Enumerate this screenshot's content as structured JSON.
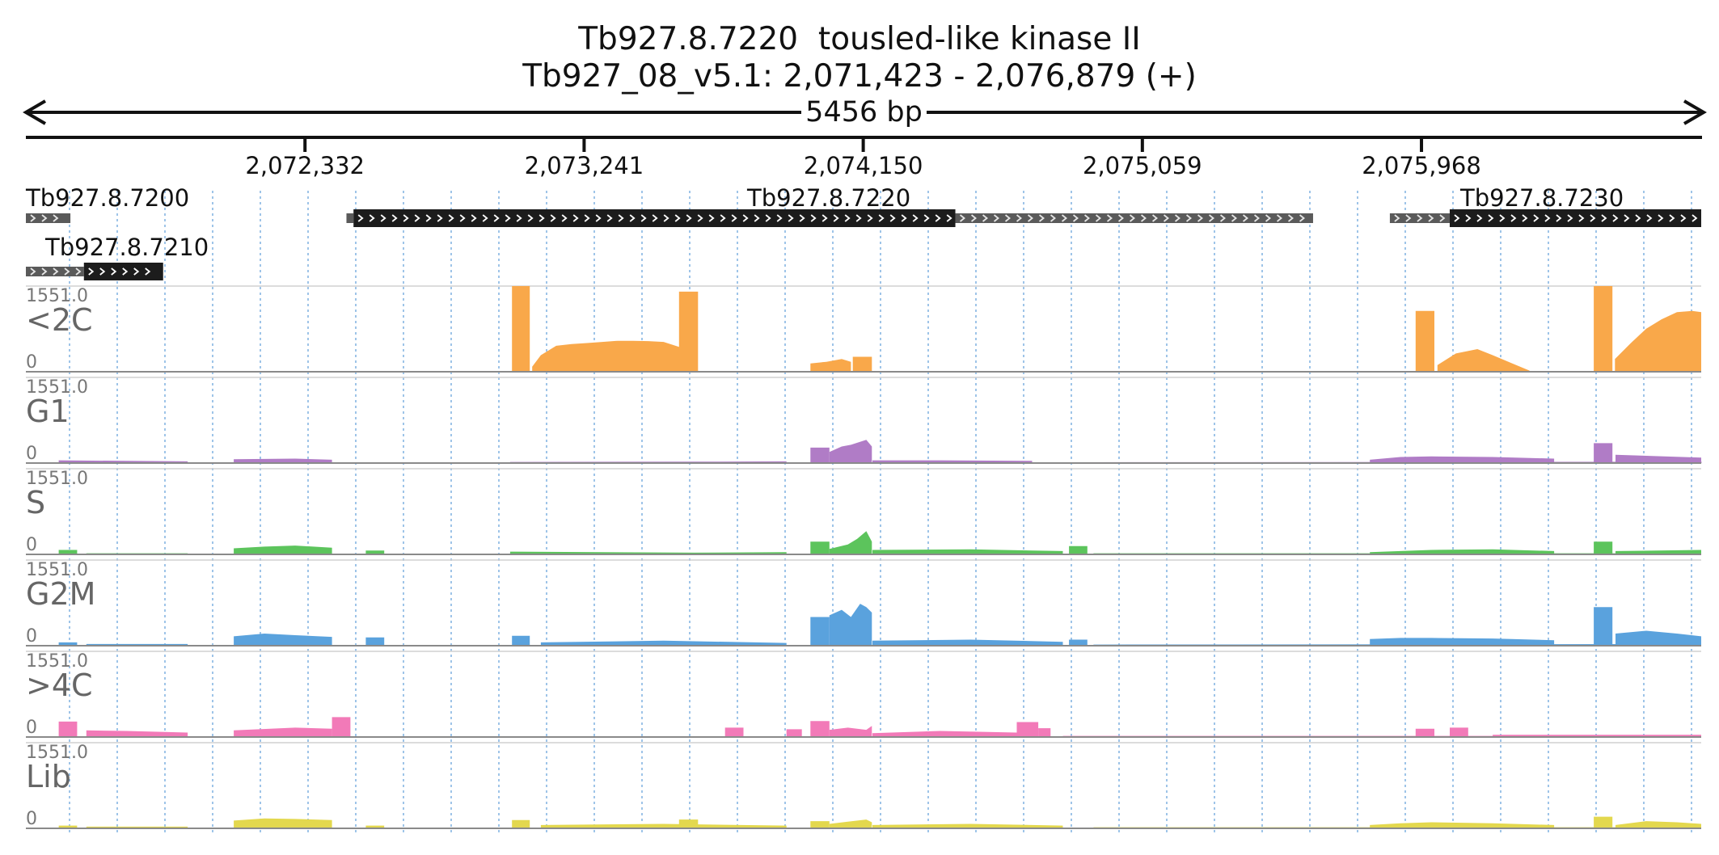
{
  "header": {
    "line1": "Tb927.8.7220  tousled-like kinase II",
    "line2": "Tb927_08_v5.1: 2,071,423 - 2,076,879 (+)",
    "span": "5456 bp"
  },
  "ruler": {
    "ticks": [
      "2,072,332",
      "2,073,241",
      "2,074,150",
      "2,075,059",
      "2,075,968"
    ]
  },
  "genes": [
    {
      "id": "Tb927.8.7200",
      "label": "Tb927.8.7200"
    },
    {
      "id": "Tb927.8.7210",
      "label": "Tb927.8.7210"
    },
    {
      "id": "Tb927.8.7220",
      "label": "Tb927.8.7220"
    },
    {
      "id": "Tb927.8.7230",
      "label": "Tb927.8.7230"
    }
  ],
  "colors": {
    "lt2c": "#f9a84a",
    "g1": "#b07cc6",
    "s": "#5cc45c",
    "g2m": "#5aa2dd",
    "gt4c": "#f27ab8",
    "lib": "#e3d84e",
    "cds": "#1c1c1c",
    "utr": "#5a5a5a",
    "grid": "#7fb0e0"
  },
  "chart_data": {
    "type": "area",
    "title": "Tb927.8.7220  tousled-like kinase II",
    "subtitle": "Tb927_08_v5.1: 2,071,423 - 2,076,879 (+)",
    "xlabel": "",
    "ylabel": "",
    "xlim": [
      2071423,
      2076879
    ],
    "ylim": [
      0,
      1551.0
    ],
    "ymax_label": "1551.0",
    "ymin_label": "0",
    "x_ticks": [
      2072332,
      2073241,
      2074150,
      2075059,
      2075968
    ],
    "gene_models": [
      {
        "name": "Tb927.8.7200",
        "strand": "+",
        "utr": [
          [
            2071423,
            2071568
          ]
        ],
        "cds": []
      },
      {
        "name": "Tb927.8.7210",
        "strand": "+",
        "utr": [
          [
            2071423,
            2071612
          ]
        ],
        "cds": [
          [
            2071612,
            2071870
          ]
        ]
      },
      {
        "name": "Tb927.8.7220",
        "strand": "+",
        "utr": [
          [
            2072467,
            2072490
          ],
          [
            2074450,
            2075615
          ]
        ],
        "cds": [
          [
            2072490,
            2074450
          ]
        ]
      },
      {
        "name": "Tb927.8.7230",
        "strand": "+",
        "utr": [
          [
            2075865,
            2076060
          ]
        ],
        "cds": [
          [
            2076060,
            2076879
          ]
        ]
      }
    ],
    "series": [
      {
        "name": "<2C",
        "color": "#f9a84a",
        "segments": [
          {
            "x": [
              2073006,
              2073064
            ],
            "y": [
              1551,
              1551
            ]
          },
          {
            "x": [
              2073072,
              2073100,
              2073150,
              2073200,
              2073250,
              2073300,
              2073350,
              2073400,
              2073450,
              2073500,
              2073550,
              2073580
            ],
            "y": [
              90,
              300,
              470,
              500,
              520,
              540,
              560,
              560,
              555,
              540,
              450,
              90
            ]
          },
          {
            "x": [
              2073550,
              2073612
            ],
            "y": [
              1450,
              1450
            ]
          },
          {
            "x": [
              2073978,
              2074030,
              2074080,
              2074110
            ],
            "y": [
              150,
              180,
              230,
              180
            ]
          },
          {
            "x": [
              2074116,
              2074178
            ],
            "y": [
              270,
              270
            ]
          },
          {
            "x": [
              2075949,
              2076010
            ],
            "y": [
              1100,
              1100
            ]
          },
          {
            "x": [
              2076020,
              2076080,
              2076150,
              2076200,
              2076260,
              2076320
            ],
            "y": [
              120,
              330,
              410,
              300,
              160,
              20
            ]
          },
          {
            "x": [
              2076529,
              2076590
            ],
            "y": [
              1551,
              1551
            ]
          },
          {
            "x": [
              2076598,
              2076650,
              2076700,
              2076750,
              2076800,
              2076850,
              2076879
            ],
            "y": [
              230,
              520,
              780,
              950,
              1080,
              1100,
              1080
            ]
          }
        ]
      },
      {
        "name": "G1",
        "color": "#b07cc6",
        "segments": [
          {
            "x": [
              2071530,
              2071750,
              2071950
            ],
            "y": [
              50,
              40,
              30
            ]
          },
          {
            "x": [
              2072100,
              2072300,
              2072420
            ],
            "y": [
              70,
              80,
              60
            ]
          },
          {
            "x": [
              2072650,
              2072800
            ],
            "y": [
              15,
              15
            ]
          },
          {
            "x": [
              2073000,
              2073600,
              2073900
            ],
            "y": [
              20,
              25,
              30
            ]
          },
          {
            "x": [
              2073978,
              2074040
            ],
            "y": [
              280,
              280
            ]
          },
          {
            "x": [
              2074040,
              2074080,
              2074110,
              2074160,
              2074178
            ],
            "y": [
              200,
              300,
              330,
              420,
              300
            ]
          },
          {
            "x": [
              2074180,
              2074400,
              2074700
            ],
            "y": [
              50,
              50,
              40
            ]
          },
          {
            "x": [
              2074820,
              2076880
            ],
            "y": [
              15,
              25
            ]
          },
          {
            "x": [
              2075800,
              2075900,
              2076000,
              2076200,
              2076400
            ],
            "y": [
              60,
              110,
              120,
              110,
              80
            ]
          },
          {
            "x": [
              2076529,
              2076590
            ],
            "y": [
              360,
              360
            ]
          },
          {
            "x": [
              2076600,
              2076879
            ],
            "y": [
              150,
              100
            ]
          }
        ]
      },
      {
        "name": "S",
        "color": "#5cc45c",
        "segments": [
          {
            "x": [
              2071530,
              2071590
            ],
            "y": [
              80,
              80
            ]
          },
          {
            "x": [
              2071620,
              2071950
            ],
            "y": [
              20,
              20
            ]
          },
          {
            "x": [
              2072100,
              2072200,
              2072300,
              2072420
            ],
            "y": [
              110,
              140,
              160,
              120
            ]
          },
          {
            "x": [
              2072530,
              2072590
            ],
            "y": [
              70,
              70
            ]
          },
          {
            "x": [
              2073000,
              2073600,
              2073900
            ],
            "y": [
              50,
              30,
              40
            ]
          },
          {
            "x": [
              2073978,
              2074040
            ],
            "y": [
              230,
              230
            ]
          },
          {
            "x": [
              2074040,
              2074100,
              2074130,
              2074160,
              2074178
            ],
            "y": [
              100,
              180,
              280,
              420,
              230
            ]
          },
          {
            "x": [
              2074180,
              2074500,
              2074800
            ],
            "y": [
              80,
              90,
              60
            ]
          },
          {
            "x": [
              2074820,
              2074880
            ],
            "y": [
              150,
              150
            ]
          },
          {
            "x": [
              2074900,
              2076879
            ],
            "y": [
              20,
              20
            ]
          },
          {
            "x": [
              2075800,
              2075900,
              2076000,
              2076200,
              2076400
            ],
            "y": [
              40,
              60,
              80,
              90,
              60
            ]
          },
          {
            "x": [
              2076529,
              2076590
            ],
            "y": [
              230,
              230
            ]
          },
          {
            "x": [
              2076600,
              2076879
            ],
            "y": [
              60,
              80
            ]
          }
        ]
      },
      {
        "name": "G2M",
        "color": "#5aa2dd",
        "segments": [
          {
            "x": [
              2071530,
              2071590
            ],
            "y": [
              60,
              60
            ]
          },
          {
            "x": [
              2071620,
              2071950
            ],
            "y": [
              30,
              30
            ]
          },
          {
            "x": [
              2072100,
              2072200,
              2072300,
              2072420
            ],
            "y": [
              170,
              220,
              190,
              160
            ]
          },
          {
            "x": [
              2072530,
              2072590
            ],
            "y": [
              150,
              150
            ]
          },
          {
            "x": [
              2073006,
              2073064
            ],
            "y": [
              180,
              180
            ]
          },
          {
            "x": [
              2073100,
              2073500,
              2073900
            ],
            "y": [
              60,
              90,
              50
            ]
          },
          {
            "x": [
              2073978,
              2074040
            ],
            "y": [
              520,
              520
            ]
          },
          {
            "x": [
              2074040,
              2074080,
              2074110,
              2074140,
              2074160,
              2074178
            ],
            "y": [
              550,
              650,
              520,
              760,
              700,
              600
            ]
          },
          {
            "x": [
              2074180,
              2074500,
              2074800
            ],
            "y": [
              90,
              110,
              70
            ]
          },
          {
            "x": [
              2074820,
              2074880
            ],
            "y": [
              110,
              110
            ]
          },
          {
            "x": [
              2074900,
              2076879
            ],
            "y": [
              20,
              30
            ]
          },
          {
            "x": [
              2075800,
              2075900,
              2076000,
              2076200,
              2076400
            ],
            "y": [
              120,
              140,
              140,
              130,
              100
            ]
          },
          {
            "x": [
              2076529,
              2076590
            ],
            "y": [
              700,
              700
            ]
          },
          {
            "x": [
              2076600,
              2076700,
              2076800,
              2076879
            ],
            "y": [
              220,
              270,
              220,
              170
            ]
          }
        ]
      },
      {
        "name": ">4C",
        "color": "#f27ab8",
        "segments": [
          {
            "x": [
              2071530,
              2071590
            ],
            "y": [
              280,
              280
            ]
          },
          {
            "x": [
              2071620,
              2071750,
              2071950
            ],
            "y": [
              120,
              110,
              80
            ]
          },
          {
            "x": [
              2072100,
              2072300,
              2072420
            ],
            "y": [
              120,
              170,
              150
            ]
          },
          {
            "x": [
              2072420,
              2072480
            ],
            "y": [
              360,
              360
            ]
          },
          {
            "x": [
              2073700,
              2073760
            ],
            "y": [
              170,
              170
            ]
          },
          {
            "x": [
              2073900,
              2073950
            ],
            "y": [
              140,
              140
            ]
          },
          {
            "x": [
              2073978,
              2074040
            ],
            "y": [
              290,
              290
            ]
          },
          {
            "x": [
              2074040,
              2074100,
              2074160,
              2074178
            ],
            "y": [
              130,
              170,
              130,
              200
            ]
          },
          {
            "x": [
              2074180,
              2074400,
              2074650
            ],
            "y": [
              70,
              110,
              80
            ]
          },
          {
            "x": [
              2074650,
              2074720
            ],
            "y": [
              270,
              270
            ]
          },
          {
            "x": [
              2074720,
              2074760
            ],
            "y": [
              160,
              160
            ]
          },
          {
            "x": [
              2074800,
              2076879
            ],
            "y": [
              20,
              20
            ]
          },
          {
            "x": [
              2075949,
              2076010
            ],
            "y": [
              150,
              150
            ]
          },
          {
            "x": [
              2076060,
              2076120
            ],
            "y": [
              170,
              170
            ]
          },
          {
            "x": [
              2076200,
              2076879
            ],
            "y": [
              40,
              40
            ]
          }
        ]
      },
      {
        "name": "Lib",
        "color": "#e3d84e",
        "segments": [
          {
            "x": [
              2071530,
              2071590
            ],
            "y": [
              50,
              50
            ]
          },
          {
            "x": [
              2071620,
              2071950
            ],
            "y": [
              30,
              30
            ]
          },
          {
            "x": [
              2072100,
              2072200,
              2072300,
              2072420
            ],
            "y": [
              140,
              180,
              170,
              150
            ]
          },
          {
            "x": [
              2072530,
              2072590
            ],
            "y": [
              50,
              50
            ]
          },
          {
            "x": [
              2073006,
              2073064
            ],
            "y": [
              150,
              150
            ]
          },
          {
            "x": [
              2073100,
              2073500,
              2073900
            ],
            "y": [
              60,
              80,
              50
            ]
          },
          {
            "x": [
              2073550,
              2073612
            ],
            "y": [
              160,
              160
            ]
          },
          {
            "x": [
              2073978,
              2074040
            ],
            "y": [
              130,
              130
            ]
          },
          {
            "x": [
              2074040,
              2074100,
              2074160,
              2074178
            ],
            "y": [
              80,
              120,
              160,
              110
            ]
          },
          {
            "x": [
              2074180,
              2074500,
              2074800
            ],
            "y": [
              60,
              80,
              50
            ]
          },
          {
            "x": [
              2074900,
              2076879
            ],
            "y": [
              20,
              20
            ]
          },
          {
            "x": [
              2075800,
              2075900,
              2076000,
              2076200,
              2076400
            ],
            "y": [
              60,
              90,
              110,
              90,
              60
            ]
          },
          {
            "x": [
              2076529,
              2076590
            ],
            "y": [
              210,
              210
            ]
          },
          {
            "x": [
              2076600,
              2076700,
              2076800,
              2076879
            ],
            "y": [
              60,
              130,
              110,
              80
            ]
          }
        ]
      }
    ]
  }
}
